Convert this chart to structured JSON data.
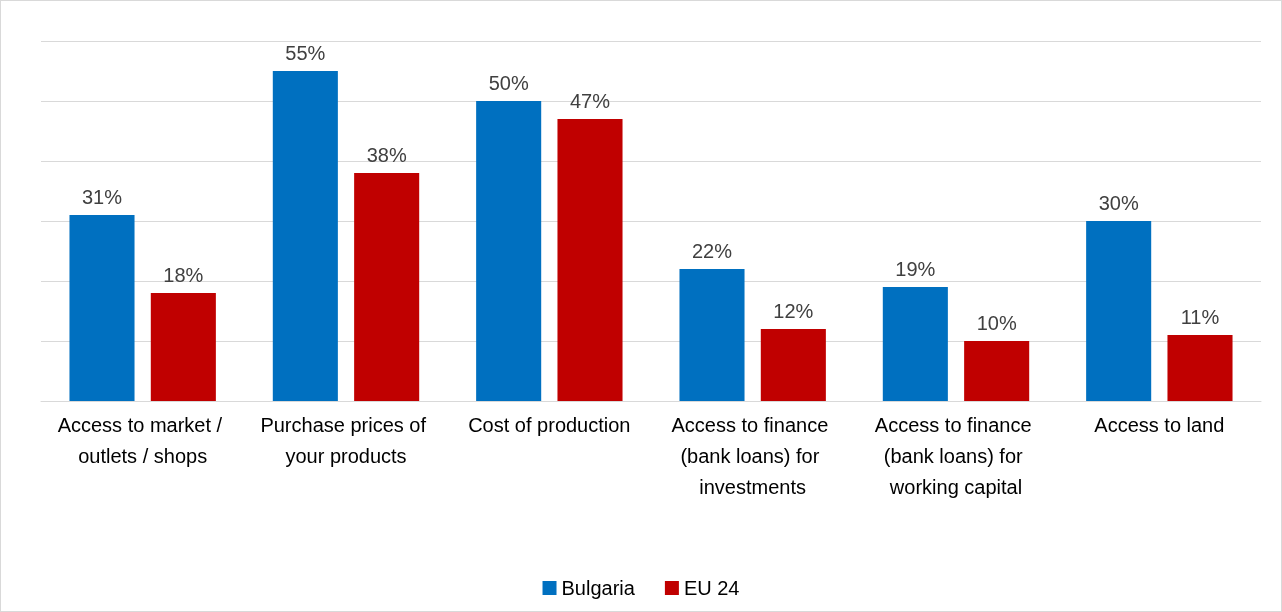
{
  "chart_data": {
    "type": "bar",
    "categories": [
      "Access to market / outlets / shops",
      "Purchase prices of your products",
      "Cost of production",
      "Access to finance (bank loans) for investments",
      "Access to finance (bank loans) for working capital",
      "Access to land"
    ],
    "series": [
      {
        "name": "Bulgaria",
        "color": "#0070c0",
        "values": [
          31,
          55,
          50,
          22,
          19,
          30
        ],
        "value_labels": [
          "31%",
          "55%",
          "50%",
          "22%",
          "19%",
          "30%"
        ]
      },
      {
        "name": "EU 24",
        "color": "#c00000",
        "values": [
          18,
          38,
          47,
          12,
          10,
          11
        ],
        "value_labels": [
          "18%",
          "38%",
          "47%",
          "12%",
          "10%",
          "11%"
        ]
      }
    ],
    "ylim": [
      0,
      60
    ],
    "yticks": [
      0,
      10,
      20,
      30,
      40,
      50,
      60
    ],
    "grid": "y",
    "tick_labels": "x",
    "legend": "bottom"
  }
}
